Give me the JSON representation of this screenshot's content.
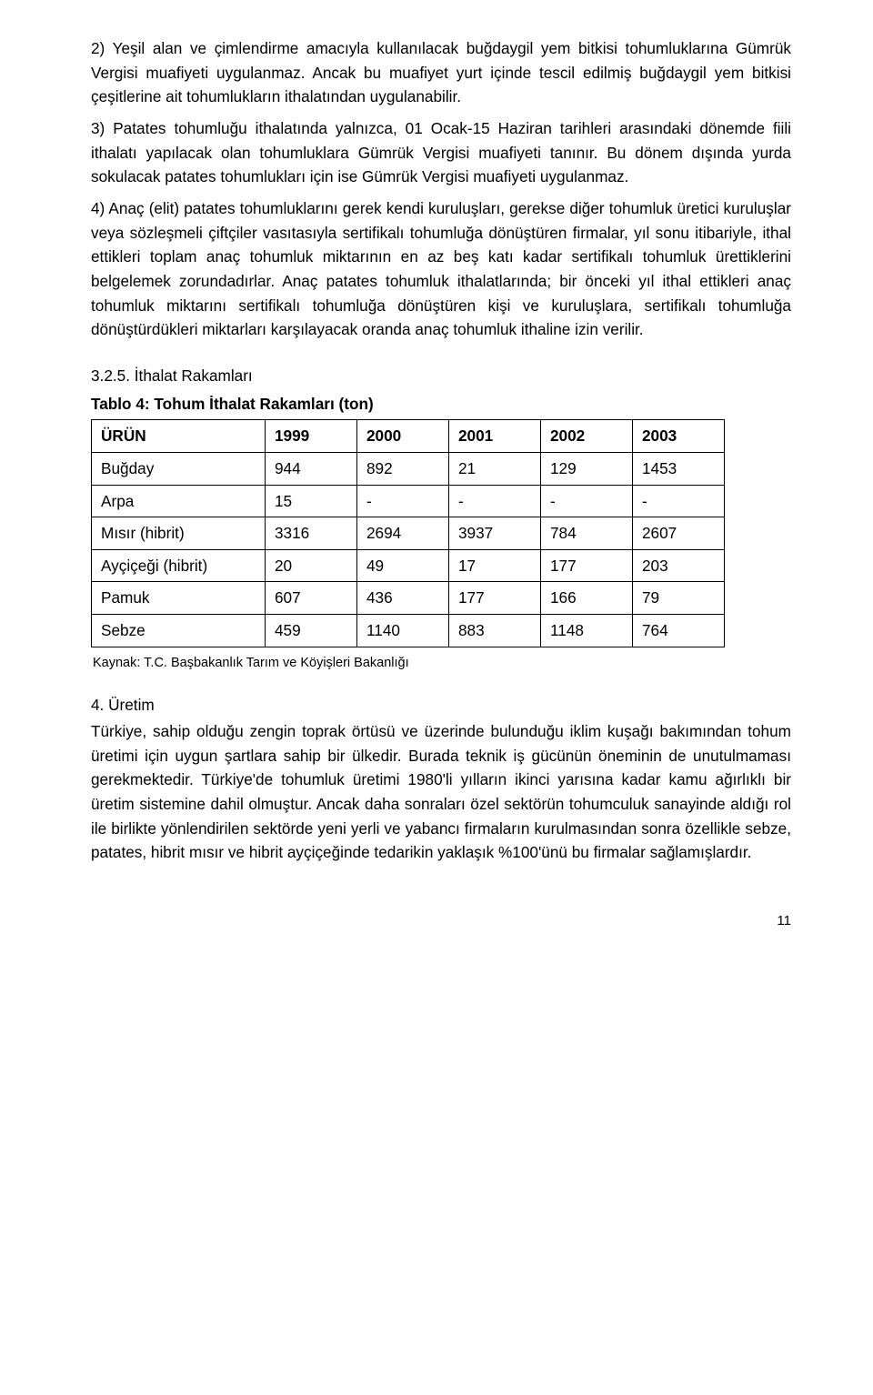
{
  "para1": "2) Yeşil alan ve çimlendirme amacıyla kullanılacak buğdaygil yem bitkisi tohumluklarına Gümrük Vergisi muafiyeti uygulanmaz. Ancak bu muafiyet yurt içinde tescil edilmiş buğdaygil yem bitkisi çeşitlerine ait tohumlukların ithalatından uygulanabilir.",
  "para2": "3) Patates tohumluğu ithalatında yalnızca, 01 Ocak-15 Haziran tarihleri arasındaki dönemde fiili ithalatı yapılacak olan tohumluklara Gümrük Vergisi muafiyeti tanınır. Bu dönem dışında yurda sokulacak patates tohumlukları için ise Gümrük Vergisi muafiyeti uygulanmaz.",
  "para3": "4) Anaç (elit) patates tohumluklarını gerek kendi kuruluşları, gerekse diğer tohumluk üretici kuruluşlar veya sözleşmeli çiftçiler vasıtasıyla sertifikalı tohumluğa dönüştüren firmalar, yıl sonu itibariyle, ithal ettikleri toplam anaç tohumluk miktarının en az beş katı kadar sertifikalı tohumluk ürettiklerini belgelemek zorundadırlar. Anaç patates tohumluk ithalatlarında; bir önceki yıl ithal ettikleri anaç tohumluk miktarını sertifikalı tohumluğa dönüştüren kişi ve kuruluşlara, sertifikalı tohumluğa dönüştürdükleri miktarları karşılayacak oranda anaç tohumluk ithaline izin verilir.",
  "sec325": "3.2.5. İthalat Rakamları",
  "tableTitle": "Tablo 4: Tohum İthalat Rakamları (ton)",
  "table": {
    "headers": [
      "ÜRÜN",
      "1999",
      "2000",
      "2001",
      "2002",
      "2003"
    ],
    "rows": [
      [
        "Buğday",
        "944",
        "892",
        "21",
        "129",
        "1453"
      ],
      [
        "Arpa",
        "15",
        "-",
        "-",
        "-",
        "-"
      ],
      [
        "Mısır (hibrit)",
        "3316",
        "2694",
        "3937",
        "784",
        "2607"
      ],
      [
        "Ayçiçeği (hibrit)",
        "20",
        "49",
        "17",
        "177",
        "203"
      ],
      [
        "Pamuk",
        "607",
        "436",
        "177",
        "166",
        "79"
      ],
      [
        "Sebze",
        "459",
        "1140",
        "883",
        "1148",
        "764"
      ]
    ]
  },
  "source": "Kaynak: T.C. Başbakanlık Tarım ve Köyişleri Bakanlığı",
  "sec4": "4. Üretim",
  "para4": "Türkiye, sahip olduğu zengin toprak örtüsü ve üzerinde bulunduğu iklim kuşağı bakımından tohum üretimi için uygun şartlara sahip bir ülkedir. Burada teknik iş gücünün öneminin de unutulmaması gerekmektedir. Türkiye'de tohumluk üretimi 1980'li yılların ikinci yarısına kadar kamu ağırlıklı bir üretim sistemine dahil olmuştur. Ancak daha sonraları özel sektörün tohumculuk sanayinde aldığı rol ile birlikte yönlendirilen sektörde yeni yerli ve yabancı firmaların kurulmasından sonra özellikle sebze, patates, hibrit mısır ve hibrit ayçiçeğinde tedarikin yaklaşık %100'ünü bu firmalar sağlamışlardır.",
  "pageNum": "11"
}
